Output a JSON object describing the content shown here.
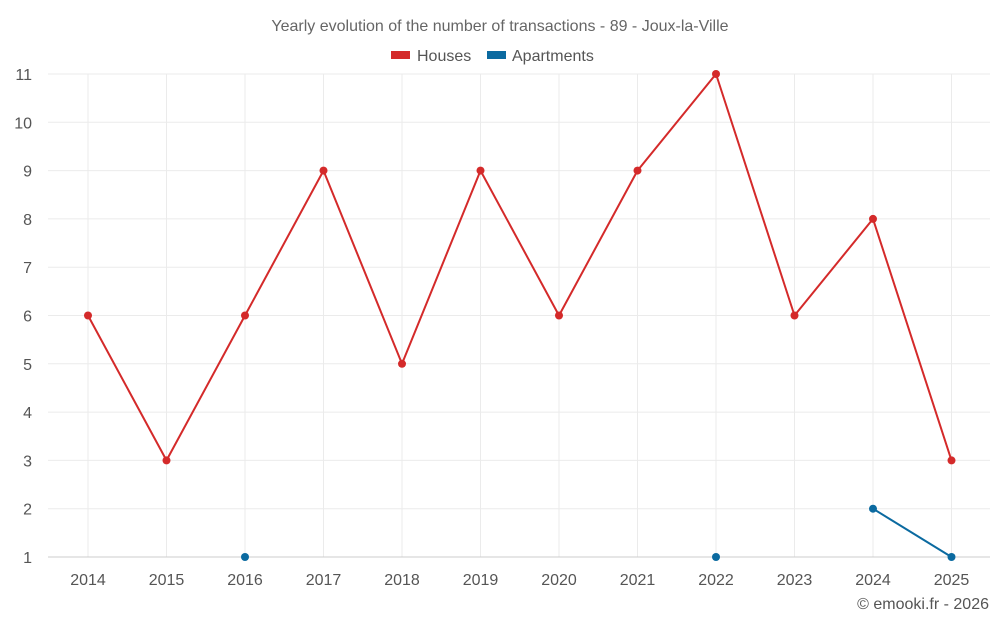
{
  "chart_data": {
    "type": "line",
    "title": "Yearly evolution of the number of transactions - 89 - Joux-la-Ville",
    "categories": [
      "2014",
      "2015",
      "2016",
      "2017",
      "2018",
      "2019",
      "2020",
      "2021",
      "2022",
      "2023",
      "2024",
      "2025"
    ],
    "series": [
      {
        "name": "Houses",
        "color": "#d42a2a",
        "values": [
          6,
          3,
          6,
          9,
          5,
          9,
          6,
          9,
          11,
          6,
          8,
          3
        ]
      },
      {
        "name": "Apartments",
        "color": "#0b6aa0",
        "values": [
          null,
          null,
          1,
          null,
          null,
          null,
          null,
          null,
          1,
          null,
          2,
          1
        ]
      }
    ],
    "y_ticks": [
      "1",
      "2",
      "3",
      "4",
      "5",
      "6",
      "7",
      "8",
      "9",
      "10",
      "11"
    ],
    "ylim": [
      1,
      11
    ],
    "xlabel": "",
    "ylabel": "",
    "grid": true,
    "legend": "top-center",
    "credit": "© emooki.fr - 2026"
  }
}
